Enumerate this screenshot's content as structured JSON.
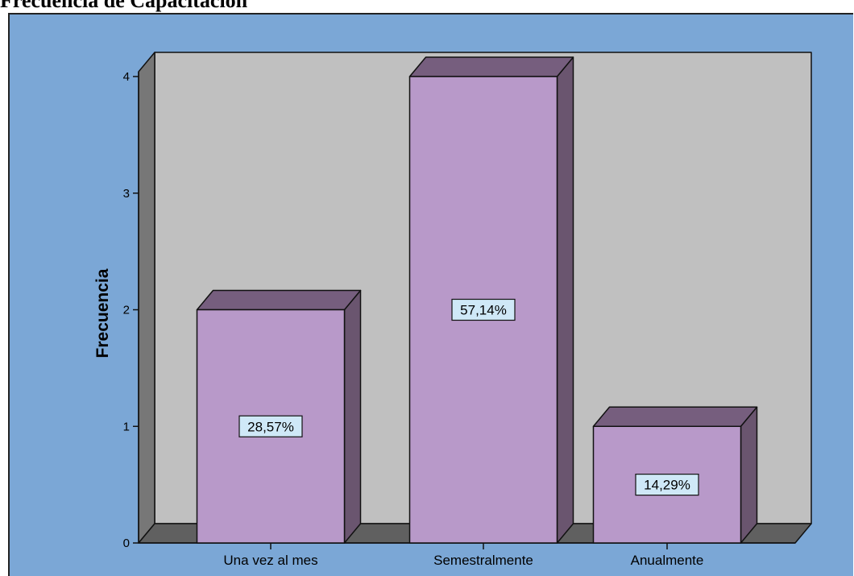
{
  "page_title": "Frecuencia de Capacitación",
  "chart_data": {
    "type": "bar",
    "style": "3d",
    "title": "Frecuencia de Capacitación",
    "xlabel": "",
    "ylabel": "Frecuencia",
    "categories": [
      "Una vez al mes",
      "Semestralmente",
      "Anualmente"
    ],
    "values": [
      2,
      4,
      1
    ],
    "data_labels": [
      "28,57%",
      "57,14%",
      "14,29%"
    ],
    "ylim": [
      0,
      4
    ],
    "yticks": [
      "0",
      "1",
      "2",
      "3",
      "4"
    ],
    "grid": false,
    "legend": "none",
    "colors": {
      "background": "#7ba7d6",
      "plot_back_wall": "#c0c0c0",
      "side_wall": "#777777",
      "floor": "#606060",
      "bar_front": "#b899c9",
      "bar_top": "#765e7e",
      "bar_side": "#6a556f",
      "data_label_bg": "#cfe8f7"
    }
  }
}
